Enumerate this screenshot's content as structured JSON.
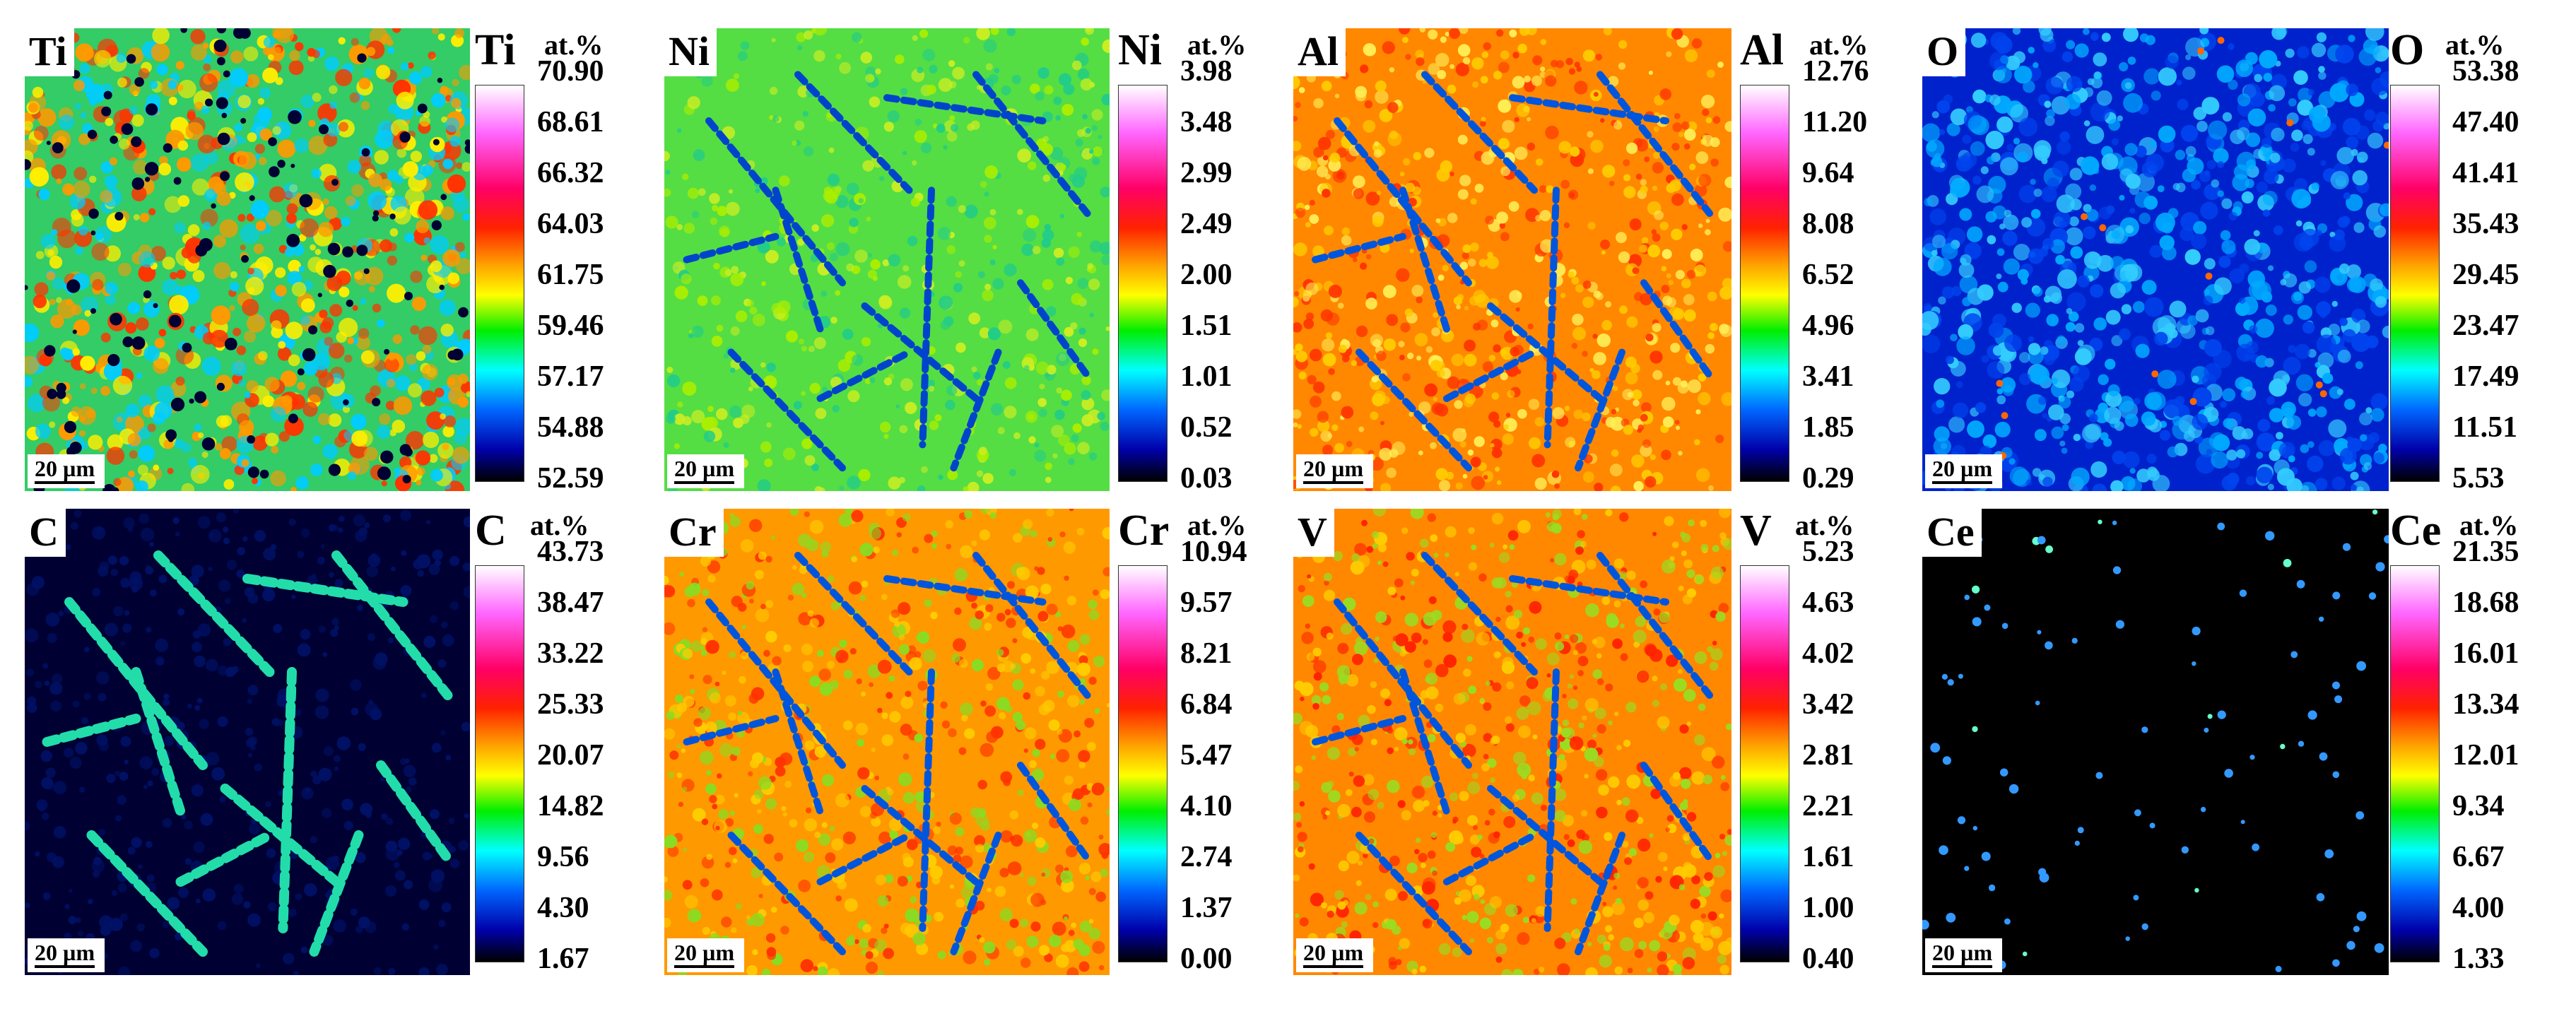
{
  "scale_bar_label": "20 µm",
  "unit_label": "at.%",
  "panels": [
    {
      "element": "Ti",
      "legend_label": "Ti",
      "ticks": [
        "70.90",
        "68.61",
        "66.32",
        "64.03",
        "61.75",
        "59.46",
        "57.17",
        "54.88",
        "52.59"
      ],
      "map_style": "Ti"
    },
    {
      "element": "Ni",
      "legend_label": "Ni",
      "ticks": [
        "3.98",
        "3.48",
        "2.99",
        "2.49",
        "2.00",
        "1.51",
        "1.01",
        "0.52",
        "0.03"
      ],
      "map_style": "Ni"
    },
    {
      "element": "Al",
      "legend_label": "Al",
      "ticks": [
        "12.76",
        "11.20",
        "9.64",
        "8.08",
        "6.52",
        "4.96",
        "3.41",
        "1.85",
        "0.29"
      ],
      "map_style": "Al"
    },
    {
      "element": "O",
      "legend_label": "O",
      "ticks": [
        "53.38",
        "47.40",
        "41.41",
        "35.43",
        "29.45",
        "23.47",
        "17.49",
        "11.51",
        "5.53"
      ],
      "map_style": "O"
    },
    {
      "element": "C",
      "legend_label": "C",
      "ticks": [
        "43.73",
        "38.47",
        "33.22",
        "25.33",
        "20.07",
        "14.82",
        "9.56",
        "4.30",
        "1.67"
      ],
      "map_style": "C"
    },
    {
      "element": "Cr",
      "legend_label": "Cr",
      "ticks": [
        "10.94",
        "9.57",
        "8.21",
        "6.84",
        "5.47",
        "4.10",
        "2.74",
        "1.37",
        "0.00"
      ],
      "map_style": "Cr"
    },
    {
      "element": "V",
      "legend_label": "V",
      "ticks": [
        "5.23",
        "4.63",
        "4.02",
        "3.42",
        "2.81",
        "2.21",
        "1.61",
        "1.00",
        "0.40"
      ],
      "map_style": "V"
    },
    {
      "element": "Ce",
      "legend_label": "Ce",
      "ticks": [
        "21.35",
        "18.68",
        "16.01",
        "13.34",
        "12.01",
        "9.34",
        "6.67",
        "4.00",
        "1.33"
      ],
      "map_style": "Ce"
    }
  ]
}
